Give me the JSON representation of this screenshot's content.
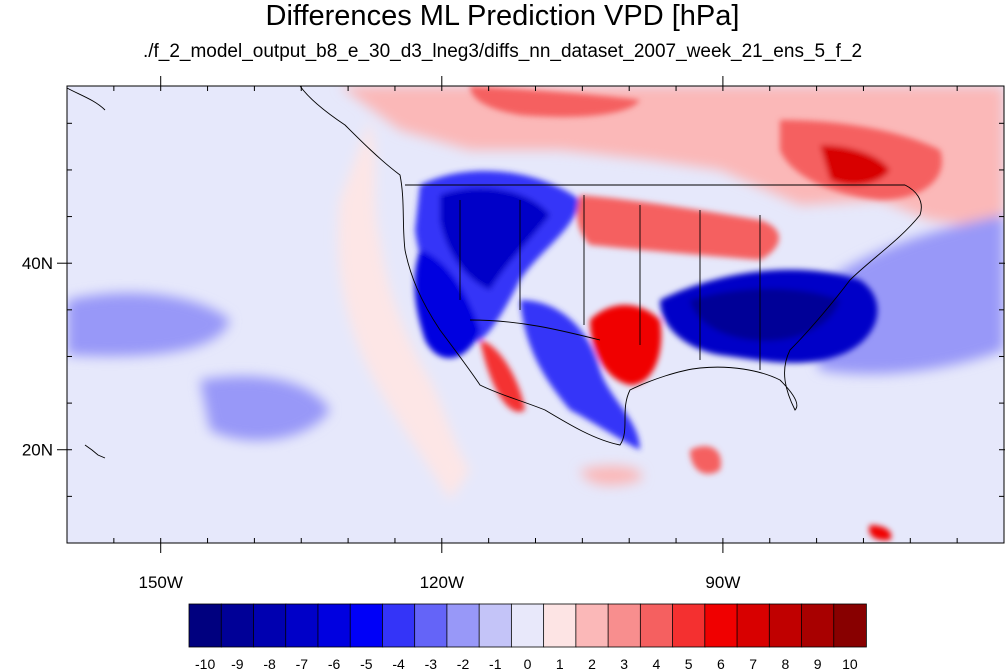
{
  "title": "Differences ML Prediction VPD [hPa]",
  "subtitle": "./f_2_model_output_b8_e_30_d3_lneg3/diffs_nn_dataset_2007_week_21_ens_5_f_2",
  "map": {
    "lon_range": [
      -160,
      -60
    ],
    "lat_range": [
      10,
      59
    ],
    "x_ticks": [
      {
        "value": -150,
        "label": "150W"
      },
      {
        "value": -120,
        "label": "120W"
      },
      {
        "value": -90,
        "label": "90W"
      }
    ],
    "y_ticks": [
      {
        "value": 40,
        "label": "40N"
      },
      {
        "value": 20,
        "label": "20N"
      }
    ],
    "variable": "VPD difference",
    "units": "hPa"
  },
  "colorbar": {
    "labels": [
      "-10",
      "-9",
      "-8",
      "-7",
      "-6",
      "-5",
      "-4",
      "-3",
      "-2",
      "-1",
      "0",
      "1",
      "2",
      "3",
      "4",
      "5",
      "6",
      "7",
      "8",
      "9",
      "10"
    ],
    "colors": [
      "#00007f",
      "#000097",
      "#0000b0",
      "#0000c8",
      "#0000e0",
      "#0000f8",
      "#3434f8",
      "#6464f8",
      "#9898f8",
      "#c4c4f8",
      "#e8e8fa",
      "#fde4e4",
      "#fbb8b8",
      "#f88e8e",
      "#f56060",
      "#f43030",
      "#f00000",
      "#d80000",
      "#c00000",
      "#a80000",
      "#880000"
    ]
  },
  "colors": {
    "neutral_negative": "#e6e8fb",
    "neutral_positive": "#fde6e6",
    "frame": "#000000"
  }
}
